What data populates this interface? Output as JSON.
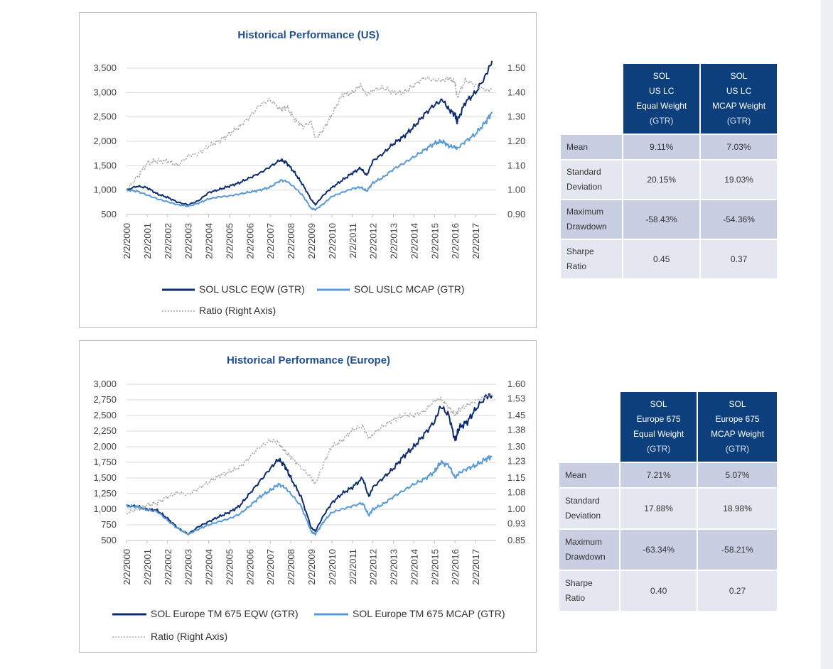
{
  "colors": {
    "eqw": "#0d2c6e",
    "mcap": "#5b9bd5",
    "ratio": "#a6a6a6",
    "header": "#0d3f7c"
  },
  "chart_data": [
    {
      "type": "line",
      "title": "Historical Performance (US)",
      "x_ticks": [
        "2/2/2000",
        "2/2/2001",
        "2/2/2002",
        "2/2/2003",
        "2/2/2004",
        "2/2/2005",
        "2/2/2006",
        "2/2/2007",
        "2/2/2008",
        "2/2/2009",
        "2/2/2010",
        "2/2/2011",
        "2/2/2012",
        "2/2/2013",
        "2/2/2014",
        "2/2/2015",
        "2/2/2016",
        "2/2/2017"
      ],
      "y_left": {
        "min": 500,
        "max": 3500,
        "ticks": [
          "3,500",
          "3,000",
          "2,500",
          "2,000",
          "1,500",
          "1,000",
          "500"
        ],
        "tick_values": [
          3500,
          3000,
          2500,
          2000,
          1500,
          1000,
          500
        ]
      },
      "y_right": {
        "min": 0.9,
        "max": 1.5,
        "ticks": [
          "1.50",
          "1.40",
          "1.30",
          "1.20",
          "1.10",
          "1.00",
          "0.90"
        ],
        "tick_values": [
          1.5,
          1.4,
          1.3,
          1.2,
          1.1,
          1.0,
          0.9
        ]
      },
      "x": [
        2000.0,
        2000.5,
        2001.0,
        2001.5,
        2002.0,
        2002.5,
        2003.0,
        2003.5,
        2004.0,
        2004.5,
        2005.0,
        2005.5,
        2006.0,
        2006.5,
        2007.0,
        2007.5,
        2007.8,
        2008.2,
        2008.6,
        2009.0,
        2009.2,
        2009.6,
        2010.0,
        2010.5,
        2011.0,
        2011.4,
        2011.7,
        2012.0,
        2012.5,
        2013.0,
        2013.5,
        2014.0,
        2014.5,
        2015.0,
        2015.4,
        2015.7,
        2016.0,
        2016.1,
        2016.5,
        2017.0,
        2017.5,
        2017.8
      ],
      "series": [
        {
          "name": "SOL USLC EQW (GTR)",
          "axis": "left",
          "color": "#0d2c6e",
          "dash": "",
          "values": [
            1000,
            1080,
            1050,
            920,
            850,
            750,
            700,
            780,
            950,
            1010,
            1080,
            1150,
            1250,
            1350,
            1480,
            1620,
            1560,
            1350,
            1100,
            800,
            700,
            900,
            1050,
            1200,
            1350,
            1450,
            1300,
            1600,
            1750,
            1950,
            2100,
            2300,
            2550,
            2750,
            2850,
            2650,
            2550,
            2400,
            2800,
            3000,
            3350,
            3650
          ]
        },
        {
          "name": "SOL USLC MCAP (GTR)",
          "axis": "left",
          "color": "#5b9bd5",
          "dash": "",
          "values": [
            1000,
            980,
            900,
            820,
            760,
            700,
            670,
            730,
            820,
            860,
            880,
            920,
            960,
            1000,
            1060,
            1200,
            1180,
            1050,
            880,
            620,
            600,
            720,
            870,
            950,
            1030,
            1060,
            980,
            1150,
            1260,
            1430,
            1550,
            1680,
            1820,
            1960,
            2000,
            1900,
            1880,
            1850,
            2000,
            2150,
            2400,
            2600
          ]
        },
        {
          "name": "Ratio (Right Axis)",
          "axis": "right",
          "color": "#a6a6a6",
          "dash": "2,2",
          "values": [
            1.0,
            1.05,
            1.11,
            1.12,
            1.12,
            1.1,
            1.14,
            1.15,
            1.18,
            1.2,
            1.23,
            1.26,
            1.3,
            1.35,
            1.37,
            1.33,
            1.34,
            1.29,
            1.26,
            1.28,
            1.21,
            1.25,
            1.31,
            1.39,
            1.4,
            1.43,
            1.39,
            1.41,
            1.42,
            1.4,
            1.4,
            1.43,
            1.46,
            1.45,
            1.45,
            1.46,
            1.44,
            1.38,
            1.45,
            1.43,
            1.41,
            1.41
          ]
        }
      ]
    },
    {
      "type": "line",
      "title": "Historical Performance (Europe)",
      "x_ticks": [
        "2/2/2000",
        "2/2/2001",
        "2/2/2002",
        "2/2/2003",
        "2/2/2004",
        "2/2/2005",
        "2/2/2006",
        "2/2/2007",
        "2/2/2008",
        "2/2/2009",
        "2/2/2010",
        "2/2/2011",
        "2/2/2012",
        "2/2/2013",
        "2/2/2014",
        "2/2/2015",
        "2/2/2016",
        "2/2/2017"
      ],
      "y_left": {
        "min": 500,
        "max": 3000,
        "ticks": [
          "3,000",
          "2,750",
          "2,500",
          "2,250",
          "2,000",
          "1,750",
          "1,500",
          "1,250",
          "1,000",
          "750",
          "500"
        ],
        "tick_values": [
          3000,
          2750,
          2500,
          2250,
          2000,
          1750,
          1500,
          1250,
          1000,
          750,
          500
        ]
      },
      "y_right": {
        "min": 0.85,
        "max": 1.6,
        "ticks": [
          "1.60",
          "1.53",
          "1.45",
          "1.38",
          "1.30",
          "1.23",
          "1.15",
          "1.08",
          "1.00",
          "0.93",
          "0.85"
        ],
        "tick_values": [
          1.6,
          1.53,
          1.45,
          1.38,
          1.3,
          1.23,
          1.15,
          1.08,
          1.0,
          0.93,
          0.85
        ]
      },
      "x": [
        2000.0,
        2000.5,
        2001.0,
        2001.5,
        2002.0,
        2002.5,
        2003.0,
        2003.5,
        2004.0,
        2004.5,
        2005.0,
        2005.5,
        2006.0,
        2006.5,
        2007.0,
        2007.4,
        2007.7,
        2008.0,
        2008.5,
        2009.0,
        2009.2,
        2009.6,
        2010.0,
        2010.5,
        2011.0,
        2011.5,
        2011.8,
        2012.0,
        2012.5,
        2013.0,
        2013.5,
        2014.0,
        2014.5,
        2015.0,
        2015.3,
        2015.7,
        2016.0,
        2016.2,
        2016.6,
        2017.0,
        2017.5,
        2017.8
      ],
      "series": [
        {
          "name": "SOL Europe TM 675 EQW (GTR)",
          "axis": "left",
          "color": "#0d2c6e",
          "dash": "",
          "values": [
            1050,
            1050,
            1000,
            980,
            850,
            700,
            600,
            720,
            800,
            880,
            950,
            1050,
            1250,
            1450,
            1650,
            1800,
            1700,
            1500,
            1200,
            700,
            650,
            900,
            1100,
            1250,
            1350,
            1500,
            1200,
            1350,
            1500,
            1650,
            1850,
            2000,
            2200,
            2400,
            2650,
            2500,
            2100,
            2300,
            2400,
            2600,
            2800,
            2820
          ]
        },
        {
          "name": "SOL Europe TM 675 MCAP (GTR)",
          "axis": "left",
          "color": "#5b9bd5",
          "dash": "",
          "values": [
            1050,
            1040,
            990,
            960,
            820,
            690,
            600,
            680,
            750,
            800,
            850,
            920,
            1050,
            1200,
            1300,
            1400,
            1350,
            1250,
            1050,
            640,
            600,
            800,
            950,
            1000,
            1050,
            1100,
            900,
            1000,
            1080,
            1200,
            1300,
            1400,
            1480,
            1600,
            1750,
            1700,
            1500,
            1580,
            1650,
            1700,
            1800,
            1850
          ]
        },
        {
          "name": "Ratio (Right Axis)",
          "axis": "right",
          "color": "#a6a6a6",
          "dash": "2,2",
          "values": [
            0.98,
            1.0,
            1.02,
            1.03,
            1.06,
            1.08,
            1.07,
            1.1,
            1.13,
            1.16,
            1.18,
            1.2,
            1.25,
            1.3,
            1.33,
            1.32,
            1.28,
            1.25,
            1.2,
            1.15,
            1.12,
            1.22,
            1.3,
            1.33,
            1.38,
            1.4,
            1.34,
            1.36,
            1.4,
            1.43,
            1.45,
            1.45,
            1.47,
            1.52,
            1.53,
            1.49,
            1.45,
            1.48,
            1.5,
            1.52,
            1.54,
            1.55
          ]
        }
      ]
    }
  ],
  "us_table": {
    "headers": [
      [
        "SOL",
        "US LC",
        "Equal Weight",
        "(GTR)"
      ],
      [
        "SOL",
        "US LC",
        "MCAP Weight",
        "(GTR)"
      ]
    ],
    "rows": [
      {
        "label": [
          "Mean"
        ],
        "values": [
          "9.11%",
          "7.03%"
        ]
      },
      {
        "label": [
          "Standard",
          "Deviation"
        ],
        "values": [
          "20.15%",
          "19.03%"
        ]
      },
      {
        "label": [
          "Maximum",
          "Drawdown"
        ],
        "values": [
          "-58.43%",
          "-54.36%"
        ]
      },
      {
        "label": [
          "Sharpe",
          "Ratio"
        ],
        "values": [
          "0.45",
          "0.37"
        ]
      }
    ]
  },
  "eu_table": {
    "headers": [
      [
        "SOL",
        "Europe 675",
        "Equal Weight",
        "(GTR)"
      ],
      [
        "SOL",
        "Europe 675",
        "MCAP Weight",
        "(GTR)"
      ]
    ],
    "rows": [
      {
        "label": [
          "Mean"
        ],
        "values": [
          "7.21%",
          "5.07%"
        ]
      },
      {
        "label": [
          "Standard",
          "Deviation"
        ],
        "values": [
          "17.88%",
          "18.98%"
        ]
      },
      {
        "label": [
          "Maximum",
          "Drawdown"
        ],
        "values": [
          "-63.34%",
          "-58.21%"
        ]
      },
      {
        "label": [
          "Sharpe",
          "Ratio"
        ],
        "values": [
          "0.40",
          "0.27"
        ]
      }
    ]
  }
}
